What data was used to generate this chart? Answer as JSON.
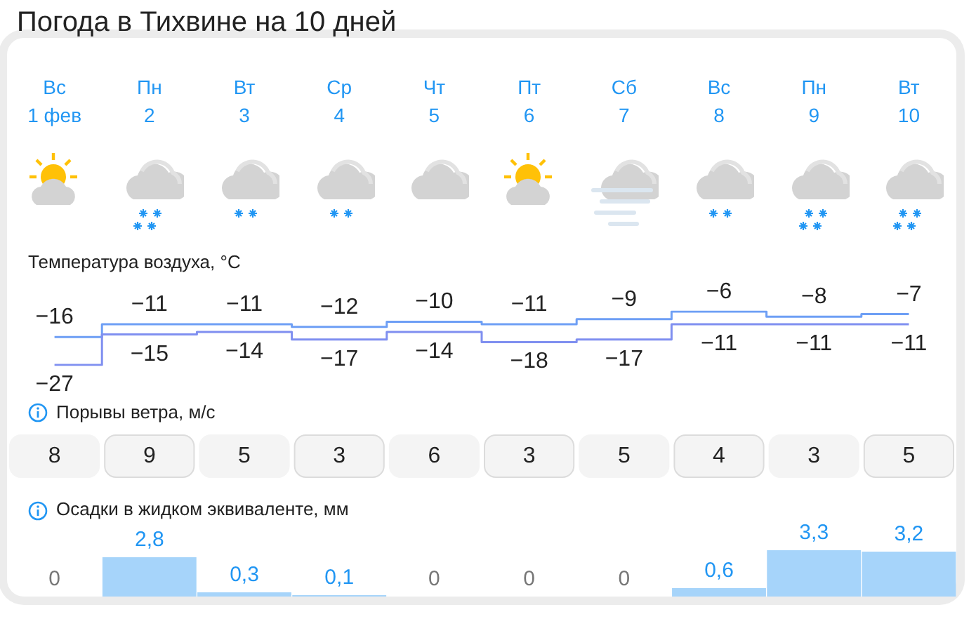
{
  "chart_data": [
    {
      "type": "step",
      "title": "Погода в Тихвине на 10 дней",
      "subtitle": "Температура воздуха, °C",
      "categories": [
        "Вс\n1 фев",
        "Пн\n2",
        "Вт\n3",
        "Ср\n4",
        "Чт\n5",
        "Пт\n6",
        "Сб\n7",
        "Вс\n8",
        "Пн\n9",
        "Вт\n10"
      ],
      "series": [
        {
          "color": "#6e9ff5",
          "values": [
            -16,
            -11,
            -11,
            -12,
            -10,
            -11,
            -9,
            -6,
            -8,
            -7
          ]
        },
        {
          "color": "#7f8ff0",
          "values": [
            -27,
            -15,
            -14,
            -17,
            -14,
            -18,
            -17,
            -11,
            -11,
            -11
          ]
        }
      ],
      "data_labels": true
    },
    {
      "type": "other",
      "title": "Порывы ветра, м/с",
      "values": [
        8,
        9,
        5,
        3,
        6,
        3,
        5,
        4,
        3,
        5
      ],
      "data_labels": true
    },
    {
      "type": "bar",
      "title": "Осадки в жидком эквиваленте, мм",
      "categories": [
        null,
        null,
        null,
        null,
        null,
        null,
        null,
        null,
        null,
        null
      ],
      "values": [
        0,
        2.8,
        0.3,
        0.1,
        0,
        0,
        0,
        0.6,
        3.3,
        3.2
      ],
      "value_labels": [
        "0",
        "2,8",
        "0,3",
        "0,1",
        "0",
        "0",
        "0",
        "0,6",
        "3,3",
        "3,2"
      ],
      "color": "#a6d4fa"
    }
  ]
}
